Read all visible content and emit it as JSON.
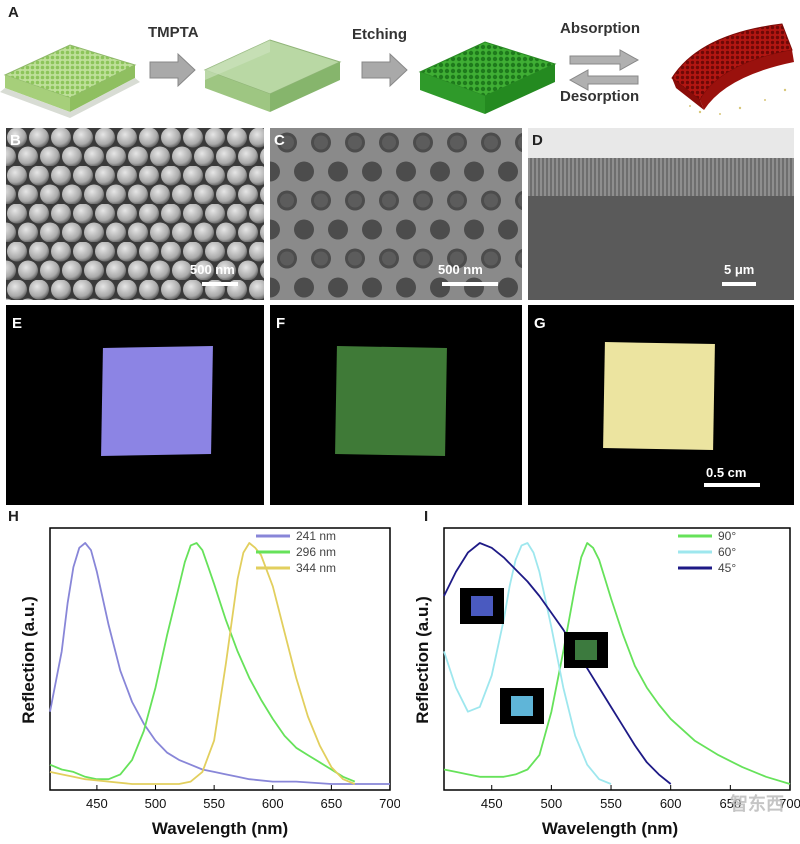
{
  "panel_labels": {
    "A": "A",
    "B": "B",
    "C": "C",
    "D": "D",
    "E": "E",
    "F": "F",
    "G": "G",
    "H": "H",
    "I": "I"
  },
  "process": {
    "step1": "TMPTA",
    "step2": "Etching",
    "step3": "Absorption",
    "step4": "Desorption"
  },
  "scale_bars": {
    "B": "500 nm",
    "C": "500 nm",
    "D": "5 μm",
    "G": "0.5 cm"
  },
  "photo_colors": {
    "E": "#8c84e4",
    "F": "#3f7a37",
    "G": "#ece4a0"
  },
  "watermark": "智东西",
  "chart_data": [
    {
      "type": "line",
      "panel": "H",
      "xlabel": "Wavelength (nm)",
      "ylabel": "Reflection (a.u.)",
      "xlim": [
        410,
        700
      ],
      "xticks": [
        450,
        500,
        550,
        600,
        650,
        700
      ],
      "legend_position": "top-right",
      "series": [
        {
          "name": "241 nm",
          "color": "#8886d8",
          "x": [
            410,
            420,
            425,
            430,
            435,
            440,
            445,
            450,
            460,
            470,
            480,
            490,
            500,
            510,
            520,
            530,
            540,
            550,
            560,
            570,
            580,
            600,
            620,
            650,
            700
          ],
          "y": [
            0.3,
            0.55,
            0.75,
            0.9,
            0.98,
            1.0,
            0.97,
            0.88,
            0.66,
            0.47,
            0.34,
            0.25,
            0.18,
            0.13,
            0.1,
            0.08,
            0.06,
            0.05,
            0.04,
            0.03,
            0.02,
            0.01,
            0.01,
            0.0,
            0.0
          ]
        },
        {
          "name": "296 nm",
          "color": "#66e25a",
          "x": [
            410,
            420,
            430,
            440,
            450,
            460,
            470,
            480,
            490,
            500,
            510,
            520,
            525,
            530,
            535,
            540,
            545,
            550,
            560,
            570,
            580,
            590,
            600,
            610,
            620,
            630,
            640,
            650,
            660,
            670
          ],
          "y": [
            0.08,
            0.06,
            0.05,
            0.03,
            0.02,
            0.02,
            0.04,
            0.1,
            0.22,
            0.4,
            0.62,
            0.82,
            0.92,
            0.99,
            1.0,
            0.97,
            0.9,
            0.83,
            0.68,
            0.55,
            0.44,
            0.35,
            0.27,
            0.2,
            0.15,
            0.12,
            0.09,
            0.06,
            0.03,
            0.01
          ]
        },
        {
          "name": "344 nm",
          "color": "#e2cf5e",
          "x": [
            410,
            420,
            430,
            440,
            460,
            480,
            500,
            520,
            530,
            540,
            550,
            560,
            570,
            575,
            580,
            585,
            590,
            600,
            610,
            620,
            630,
            640,
            650,
            660,
            670
          ],
          "y": [
            0.05,
            0.04,
            0.03,
            0.02,
            0.01,
            0.0,
            0.0,
            0.0,
            0.01,
            0.05,
            0.18,
            0.5,
            0.85,
            0.96,
            1.0,
            0.98,
            0.95,
            0.82,
            0.63,
            0.44,
            0.28,
            0.16,
            0.07,
            0.02,
            0.0
          ]
        }
      ]
    },
    {
      "type": "line",
      "panel": "I",
      "xlabel": "Wavelength (nm)",
      "ylabel": "Reflection (a.u.)",
      "xlim": [
        410,
        700
      ],
      "xticks": [
        450,
        500,
        550,
        600,
        650,
        700
      ],
      "legend_position": "top-right",
      "series": [
        {
          "name": "90°",
          "color": "#66e25a",
          "x": [
            410,
            420,
            430,
            440,
            450,
            460,
            470,
            480,
            490,
            500,
            510,
            520,
            525,
            530,
            535,
            540,
            545,
            550,
            560,
            570,
            580,
            590,
            600,
            620,
            640,
            660,
            680,
            700
          ],
          "y": [
            0.06,
            0.05,
            0.04,
            0.03,
            0.03,
            0.03,
            0.04,
            0.06,
            0.12,
            0.3,
            0.55,
            0.82,
            0.94,
            1.0,
            0.98,
            0.93,
            0.85,
            0.77,
            0.62,
            0.49,
            0.4,
            0.33,
            0.27,
            0.18,
            0.12,
            0.07,
            0.03,
            0.0
          ]
        },
        {
          "name": "60°",
          "color": "#9ee7ee",
          "x": [
            410,
            420,
            430,
            440,
            450,
            460,
            465,
            470,
            475,
            480,
            485,
            490,
            500,
            510,
            520,
            530,
            540,
            550
          ],
          "y": [
            0.55,
            0.4,
            0.3,
            0.32,
            0.45,
            0.68,
            0.82,
            0.93,
            0.99,
            1.0,
            0.96,
            0.88,
            0.65,
            0.4,
            0.2,
            0.08,
            0.02,
            0.0
          ]
        },
        {
          "name": "45°",
          "color": "#1e1a86",
          "x": [
            410,
            420,
            430,
            440,
            450,
            460,
            470,
            480,
            490,
            500,
            510,
            520,
            530,
            540,
            550,
            560,
            570,
            580,
            590,
            600
          ],
          "y": [
            0.78,
            0.88,
            0.96,
            1.0,
            0.98,
            0.94,
            0.89,
            0.84,
            0.78,
            0.71,
            0.64,
            0.56,
            0.48,
            0.4,
            0.32,
            0.24,
            0.16,
            0.09,
            0.04,
            0.0
          ]
        }
      ],
      "insets": [
        {
          "color": "#4a5ac0",
          "series": "45°"
        },
        {
          "color": "#5fb5d8",
          "series": "60°"
        },
        {
          "color": "#3c7a3e",
          "series": "90°"
        }
      ]
    }
  ]
}
